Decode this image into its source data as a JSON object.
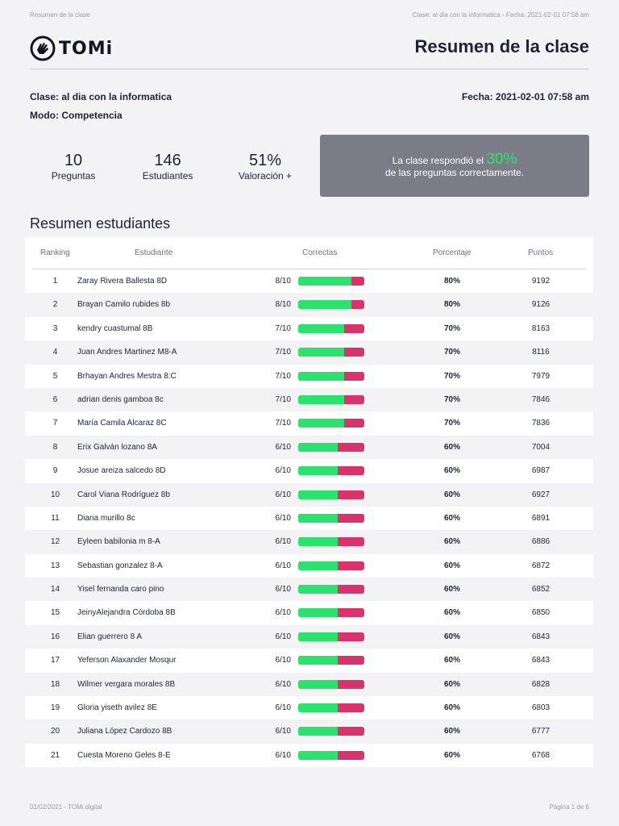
{
  "top_meta": {
    "left": "Resumen de la clase",
    "right": "Clase: al dia con la informatica - Fecha: 2021-02-01 07:58 am"
  },
  "header": {
    "logo_text": "TOMi",
    "title": "Resumen de la clase"
  },
  "info": {
    "clase": "Clase: al dia con la informatica",
    "fecha": "Fecha: 2021-02-01 07:58 am",
    "modo": "Modo: Competencia"
  },
  "stats": [
    {
      "value": "10",
      "label": "Preguntas"
    },
    {
      "value": "146",
      "label": "Estudiantes"
    },
    {
      "value": "51%",
      "label": "Valoración +"
    }
  ],
  "summary_box": {
    "before": "La clase respondió el",
    "pct": "30%",
    "after": "de las preguntas correctamente."
  },
  "section_title": "Resumen estudiantes",
  "table": {
    "headers": [
      "Ranking",
      "Estudiante",
      "Correctas",
      "Porcentaje",
      "Puntos"
    ],
    "rows": [
      {
        "rank": "1",
        "name": "Zaray Rivera Ballesta 8D",
        "score": "8/10",
        "ratio": 0.8,
        "pct": "80%",
        "pts": "9192"
      },
      {
        "rank": "2",
        "name": "Brayan Camilo rubides 8b",
        "score": "8/10",
        "ratio": 0.8,
        "pct": "80%",
        "pts": "9126"
      },
      {
        "rank": "3",
        "name": "kendry cuastumal 8B",
        "score": "7/10",
        "ratio": 0.7,
        "pct": "70%",
        "pts": "8163"
      },
      {
        "rank": "4",
        "name": "Juan Andres Martinez M8-A",
        "score": "7/10",
        "ratio": 0.7,
        "pct": "70%",
        "pts": "8116"
      },
      {
        "rank": "5",
        "name": "Brhayan Andres Mestra 8:C",
        "score": "7/10",
        "ratio": 0.7,
        "pct": "70%",
        "pts": "7979"
      },
      {
        "rank": "6",
        "name": "adrian denis gamboa 8c",
        "score": "7/10",
        "ratio": 0.7,
        "pct": "70%",
        "pts": "7846"
      },
      {
        "rank": "7",
        "name": "María Camila Alcaraz 8C",
        "score": "7/10",
        "ratio": 0.7,
        "pct": "70%",
        "pts": "7836"
      },
      {
        "rank": "8",
        "name": "Erix Galván lozano 8A",
        "score": "6/10",
        "ratio": 0.6,
        "pct": "60%",
        "pts": "7004"
      },
      {
        "rank": "9",
        "name": "Josue areiza salcedo 8D",
        "score": "6/10",
        "ratio": 0.6,
        "pct": "60%",
        "pts": "6987"
      },
      {
        "rank": "10",
        "name": "Carol Viana Rodríguez 8b",
        "score": "6/10",
        "ratio": 0.6,
        "pct": "60%",
        "pts": "6927"
      },
      {
        "rank": "11",
        "name": "Diana murillo 8c",
        "score": "6/10",
        "ratio": 0.6,
        "pct": "60%",
        "pts": "6891"
      },
      {
        "rank": "12",
        "name": "Eyleen babilonia m 8-A",
        "score": "6/10",
        "ratio": 0.6,
        "pct": "60%",
        "pts": "6886"
      },
      {
        "rank": "13",
        "name": "Sebastian gonzalez 8-A",
        "score": "6/10",
        "ratio": 0.6,
        "pct": "60%",
        "pts": "6872"
      },
      {
        "rank": "14",
        "name": "Yisel fernanda caro pino",
        "score": "6/10",
        "ratio": 0.6,
        "pct": "60%",
        "pts": "6852"
      },
      {
        "rank": "15",
        "name": "JeinyAlejandra Córdoba 8B",
        "score": "6/10",
        "ratio": 0.6,
        "pct": "60%",
        "pts": "6850"
      },
      {
        "rank": "16",
        "name": "Elian guerrero 8 A",
        "score": "6/10",
        "ratio": 0.6,
        "pct": "60%",
        "pts": "6843"
      },
      {
        "rank": "17",
        "name": "Yeferson Alaxander Mosqur",
        "score": "6/10",
        "ratio": 0.6,
        "pct": "60%",
        "pts": "6843"
      },
      {
        "rank": "18",
        "name": "Wilmer vergara morales 8B",
        "score": "6/10",
        "ratio": 0.6,
        "pct": "60%",
        "pts": "6828"
      },
      {
        "rank": "19",
        "name": "Gloria yiseth avilez 8E",
        "score": "6/10",
        "ratio": 0.6,
        "pct": "60%",
        "pts": "6803"
      },
      {
        "rank": "20",
        "name": "Juliana López Cardozo 8B",
        "score": "6/10",
        "ratio": 0.6,
        "pct": "60%",
        "pts": "6777"
      },
      {
        "rank": "21",
        "name": "Cuesta Moreno Geles 8-E",
        "score": "6/10",
        "ratio": 0.6,
        "pct": "60%",
        "pts": "6768"
      }
    ]
  },
  "colors": {
    "correct": "#2de16e",
    "incorrect": "#d9336b",
    "highlight": "#2ee26e"
  },
  "footer": {
    "left": "01/02/2021 - TOMi.digital",
    "right": "Página 1 de 6"
  }
}
